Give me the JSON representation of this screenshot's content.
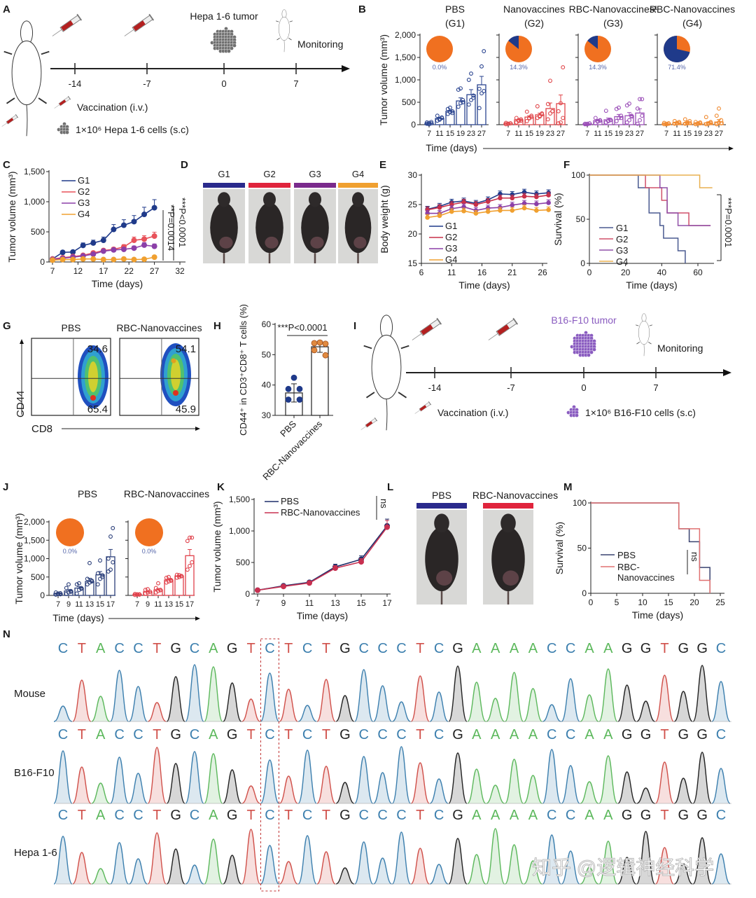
{
  "panel_labels": [
    "A",
    "B",
    "C",
    "D",
    "E",
    "F",
    "G",
    "H",
    "I",
    "J",
    "K",
    "L",
    "M",
    "N"
  ],
  "A": {
    "tumor_label": "Hepa 1-6 tumor",
    "timeline_ticks": [
      "-14",
      "-7",
      "0",
      "7"
    ],
    "monitoring": "Monitoring",
    "legend_vaccination": "Vaccination (i.v.)",
    "legend_cells": "1×10⁶ Hepa 1-6 cells (s.c)"
  },
  "D": {
    "labels": [
      "G1",
      "G2",
      "G3",
      "G4"
    ],
    "colors": [
      "#2a2a8c",
      "#e0243c",
      "#7a2a8c",
      "#f0a030"
    ]
  },
  "G": {
    "titles": [
      "PBS",
      "RBC-Nanovaccines"
    ],
    "upper_values": [
      "34.6",
      "54.1"
    ],
    "lower_values": [
      "65.4",
      "45.9"
    ],
    "y_label": "CD44",
    "x_label": "CD8"
  },
  "I": {
    "tumor_label": "B16-F10 tumor",
    "timeline_ticks": [
      "-14",
      "-7",
      "0",
      "7"
    ],
    "monitoring": "Monitoring",
    "legend_vaccination": "Vaccination (i.v.)",
    "legend_cells": "1×10⁶ B16-F10 cells (s.c)",
    "tumor_color": "#8a5cc0"
  },
  "L": {
    "labels": [
      "PBS",
      "RBC-Nanovaccines"
    ],
    "colors": [
      "#2a2a8c",
      "#e0243c"
    ]
  },
  "N": {
    "sequence": "CTACCTGCAGTCTCTGCCCTCGAAAACCAAGGTGGC",
    "rows": [
      "Mouse",
      "B16-F10",
      "Hepa 1-6"
    ],
    "highlight_index": 11,
    "base_colors": {
      "A": "#5cb85c",
      "C": "#3c7fae",
      "G": "#222222",
      "T": "#d0504a"
    },
    "watermark": "知乎 @逻辑神经科学"
  },
  "chart_data": [
    {
      "panel": "B",
      "type": "bar",
      "ylabel": "Tumor volume (mm³)",
      "xlabel": "Time (days)",
      "ylim": [
        0,
        2000
      ],
      "yticks": [
        "0",
        "500",
        "1,000",
        "1,500",
        "2,000"
      ],
      "categories": [
        "7",
        "11",
        "15",
        "19",
        "23",
        "27"
      ],
      "pie_colors": {
        "tumor": "#f07020",
        "tumor_free": "#1f3a8a"
      },
      "groups": [
        {
          "title": "PBS",
          "subtitle": "(G1)",
          "color": "#2b4590",
          "pie_label": "0.0%",
          "tumor_free_fraction": 0.0,
          "means": [
            30,
            140,
            300,
            530,
            670,
            890
          ],
          "points": [
            [
              20,
              40,
              60,
              50,
              10,
              30
            ],
            [
              90,
              130,
              160,
              200,
              110,
              150
            ],
            [
              240,
              280,
              300,
              350,
              380,
              260
            ],
            [
              400,
              480,
              550,
              780,
              810,
              500
            ],
            [
              450,
              550,
              650,
              1000,
              1140,
              600
            ],
            [
              370,
              700,
              750,
              800,
              1300,
              1640
            ]
          ]
        },
        {
          "title": "Nanovaccines",
          "subtitle": "(G2)",
          "color": "#e0464a",
          "pie_label": "14.3%",
          "tumor_free_fraction": 0.143,
          "means": [
            30,
            110,
            170,
            220,
            360,
            470
          ],
          "points": [
            [
              10,
              20,
              30,
              40,
              20,
              30
            ],
            [
              50,
              80,
              120,
              150,
              100,
              90
            ],
            [
              80,
              150,
              200,
              290,
              140,
              170
            ],
            [
              150,
              200,
              250,
              410,
              180,
              230
            ],
            [
              120,
              250,
              300,
              460,
              980,
              300
            ],
            [
              30,
              50,
              150,
              300,
              480,
              1280
            ]
          ]
        },
        {
          "title": "RBC-Nanovaccines¹",
          "subtitle": "(G3)",
          "color": "#9b4fb8",
          "pie_label": "14.3%",
          "tumor_free_fraction": 0.143,
          "means": [
            20,
            90,
            110,
            180,
            200,
            260
          ],
          "points": [
            [
              10,
              20,
              30,
              20,
              10,
              25
            ],
            [
              30,
              70,
              100,
              150,
              80,
              90
            ],
            [
              50,
              80,
              100,
              310,
              90,
              110
            ],
            [
              80,
              150,
              200,
              350,
              380,
              150
            ],
            [
              50,
              100,
              200,
              430,
              470,
              180
            ],
            [
              20,
              100,
              200,
              360,
              570,
              570
            ]
          ]
        },
        {
          "title": "RBC-Nanovaccines",
          "subtitle": "(G4)",
          "color": "#f08a30",
          "pie_label": "71.4%",
          "tumor_free_fraction": 0.714,
          "means": [
            20,
            40,
            40,
            30,
            40,
            60
          ],
          "points": [
            [
              10,
              20,
              30,
              40,
              10,
              20
            ],
            [
              20,
              40,
              60,
              80,
              30,
              40
            ],
            [
              20,
              50,
              80,
              120,
              30,
              40
            ],
            [
              10,
              30,
              50,
              60,
              20,
              30
            ],
            [
              10,
              30,
              60,
              170,
              20,
              40
            ],
            [
              10,
              50,
              100,
              200,
              360,
              30
            ]
          ]
        }
      ]
    },
    {
      "panel": "C",
      "type": "line",
      "ylabel": "Tumor volume (mm³)",
      "xlabel": "Time (days)",
      "ylim": [
        0,
        1500
      ],
      "yticks": [
        "0",
        "500",
        "1,000",
        "1,500"
      ],
      "xlim": [
        7,
        32
      ],
      "xticks": [
        "7",
        "12",
        "17",
        "22",
        "27",
        "32"
      ],
      "x": [
        7,
        9,
        11,
        13,
        15,
        17,
        19,
        21,
        23,
        25,
        27
      ],
      "series": [
        {
          "name": "G1",
          "color": "#1f3a8a",
          "values": [
            50,
            160,
            165,
            275,
            315,
            360,
            540,
            610,
            670,
            790,
            900
          ]
        },
        {
          "name": "G2",
          "color": "#e8525a",
          "values": [
            50,
            70,
            90,
            110,
            150,
            190,
            210,
            250,
            360,
            380,
            430
          ]
        },
        {
          "name": "G3",
          "color": "#8b3fa8",
          "values": [
            40,
            60,
            80,
            100,
            130,
            180,
            200,
            210,
            230,
            280,
            260
          ]
        },
        {
          "name": "G4",
          "color": "#f0a030",
          "values": [
            30,
            40,
            40,
            50,
            50,
            40,
            40,
            50,
            40,
            45,
            80
          ]
        }
      ],
      "annotations": [
        "**P=0.0014",
        "***P<0.0001"
      ]
    },
    {
      "panel": "E",
      "type": "line",
      "ylabel": "Body weight (g)",
      "xlabel": "Time (days)",
      "ylim": [
        15,
        30
      ],
      "yticks": [
        "15",
        "20",
        "25",
        "30"
      ],
      "xlim": [
        6,
        26
      ],
      "xticks": [
        "6",
        "11",
        "16",
        "21",
        "26"
      ],
      "x": [
        7,
        9,
        11,
        13,
        15,
        17,
        19,
        21,
        23,
        25,
        27
      ],
      "series": [
        {
          "name": "G1",
          "color": "#1f3a8a",
          "values": [
            24.2,
            24.7,
            25.4,
            25.6,
            25.2,
            25.8,
            26.8,
            26.7,
            27.1,
            26.8,
            27.0
          ]
        },
        {
          "name": "G2",
          "color": "#c8304a",
          "values": [
            24.1,
            24.5,
            25.0,
            25.4,
            25.0,
            25.5,
            26.1,
            26.1,
            26.4,
            26.3,
            26.6
          ]
        },
        {
          "name": "G3",
          "color": "#8b3fa8",
          "values": [
            23.5,
            23.5,
            24.3,
            24.6,
            24.0,
            24.4,
            24.5,
            24.9,
            25.2,
            25.1,
            25.3
          ]
        },
        {
          "name": "G4",
          "color": "#f0a030",
          "values": [
            22.8,
            23.1,
            23.8,
            23.9,
            23.5,
            23.8,
            24.0,
            24.0,
            24.4,
            24.0,
            24.1
          ]
        }
      ]
    },
    {
      "panel": "F",
      "type": "line",
      "ylabel": "Survival (%)",
      "xlabel": "Time (days)",
      "ylim": [
        0,
        100
      ],
      "yticks": [
        "0",
        "50",
        "100"
      ],
      "xlim": [
        0,
        70
      ],
      "xticks": [
        "0",
        "20",
        "40",
        "60"
      ],
      "series": [
        {
          "name": "G1",
          "color": "#4a5a90",
          "steps": [
            [
              0,
              100
            ],
            [
              27,
              85.7
            ],
            [
              33,
              57.1
            ],
            [
              39,
              42.9
            ],
            [
              41,
              28.6
            ],
            [
              49,
              14.3
            ],
            [
              53,
              0
            ]
          ],
          "end": 53
        },
        {
          "name": "G2",
          "color": "#d0506a",
          "steps": [
            [
              0,
              100
            ],
            [
              31,
              85.7
            ],
            [
              40,
              71.4
            ],
            [
              43,
              57.1
            ],
            [
              55,
              42.9
            ]
          ],
          "end": 67
        },
        {
          "name": "G3",
          "color": "#9050a8",
          "steps": [
            [
              0,
              100
            ],
            [
              39,
              85.7
            ],
            [
              43,
              57.1
            ],
            [
              49,
              42.9
            ]
          ],
          "end": 67
        },
        {
          "name": "G4",
          "color": "#e8b050",
          "steps": [
            [
              0,
              100
            ],
            [
              61,
              85.7
            ]
          ],
          "end": 68
        }
      ],
      "annotations": [
        "***P=0.0001"
      ]
    },
    {
      "panel": "H",
      "type": "bar",
      "ylabel": "CD44⁺ in CD3⁺CD8⁺ T cells (%)",
      "ylim": [
        30,
        60
      ],
      "yticks": [
        "30",
        "40",
        "50",
        "60"
      ],
      "categories": [
        "PBS",
        "RBC-Nanovaccines"
      ],
      "colors": [
        "#1f3a8a",
        "#e08a40"
      ],
      "values": [
        37.4,
        52.6
      ],
      "points": [
        [
          42.4,
          38.7,
          38.7,
          35.2,
          35.2
        ],
        [
          54.0,
          53.8,
          53.6,
          51.5,
          49.8
        ]
      ],
      "annotations": [
        "***P<0.0001"
      ]
    },
    {
      "panel": "J",
      "type": "bar",
      "ylabel": "Tumor volume (mm³)",
      "xlabel": "Time (days)",
      "ylim": [
        0,
        2000
      ],
      "yticks": [
        "0",
        "500",
        "1,000",
        "1,500",
        "2,000"
      ],
      "categories": [
        "7",
        "9",
        "11",
        "13",
        "15",
        "17"
      ],
      "pie_colors": {
        "tumor": "#f07020",
        "tumor_free": "#1f3a8a"
      },
      "groups": [
        {
          "title": "PBS",
          "color": "#2b3f7a",
          "pie_label": "0.0%",
          "tumor_free_fraction": 0.0,
          "means": [
            50,
            120,
            200,
            380,
            560,
            1050
          ],
          "points": [
            [
              20,
              40,
              60,
              80,
              50,
              30
            ],
            [
              40,
              80,
              120,
              200,
              300,
              100
            ],
            [
              50,
              150,
              200,
              300,
              330,
              180
            ],
            [
              300,
              350,
              400,
              450,
              880,
              380
            ],
            [
              300,
              450,
              550,
              600,
              950,
              500
            ],
            [
              650,
              700,
              900,
              1000,
              1600,
              1830
            ]
          ]
        },
        {
          "title": "RBC-Nanovaccines",
          "color": "#e0404a",
          "pie_label": "0.0%",
          "tumor_free_fraction": 0.0,
          "means": [
            30,
            100,
            150,
            420,
            530,
            1080
          ],
          "points": [
            [
              10,
              20,
              30,
              40,
              30,
              20
            ],
            [
              50,
              80,
              100,
              150,
              170,
              100
            ],
            [
              80,
              120,
              150,
              200,
              330,
              140
            ],
            [
              350,
              380,
              420,
              480,
              500,
              400
            ],
            [
              480,
              500,
              530,
              560,
              550,
              520
            ],
            [
              700,
              800,
              900,
              1480,
              1570,
              1570
            ]
          ]
        }
      ]
    },
    {
      "panel": "K",
      "type": "line",
      "ylabel": "Tumor volume (mm³)",
      "xlabel": "Time (days)",
      "ylim": [
        0,
        1500
      ],
      "yticks": [
        "0",
        "500",
        "1,000",
        "1,500"
      ],
      "xlim": [
        7,
        17
      ],
      "xticks": [
        "7",
        "9",
        "11",
        "13",
        "15",
        "17"
      ],
      "x": [
        7,
        9,
        11,
        13,
        15,
        17
      ],
      "series": [
        {
          "name": "PBS",
          "color": "#1f2f6a",
          "values": [
            60,
            130,
            185,
            430,
            550,
            1080
          ]
        },
        {
          "name": "RBC-Nanovaccines",
          "color": "#c83050",
          "values": [
            60,
            120,
            175,
            410,
            510,
            1060
          ]
        }
      ],
      "annotations": [
        "ns"
      ]
    },
    {
      "panel": "M",
      "type": "line",
      "ylabel": "Survival (%)",
      "xlabel": "Time (days)",
      "ylim": [
        0,
        100
      ],
      "yticks": [
        "0",
        "50",
        "100"
      ],
      "xlim": [
        0,
        25
      ],
      "xticks": [
        "0",
        "5",
        "10",
        "15",
        "20",
        "25"
      ],
      "series": [
        {
          "name": "PBS",
          "legend_lines": [
            "PBS"
          ],
          "color": "#3a4470",
          "steps": [
            [
              0,
              100
            ],
            [
              17,
              71.4
            ],
            [
              19,
              57.1
            ],
            [
              21,
              28.6
            ],
            [
              23,
              0
            ]
          ],
          "end": 23
        },
        {
          "name": "RBC-Nanovaccines",
          "legend_lines": [
            "RBC-",
            "Nanovaccines"
          ],
          "color": "#e07070",
          "steps": [
            [
              0,
              100
            ],
            [
              17,
              71.4
            ],
            [
              21,
              14.3
            ],
            [
              23,
              0
            ]
          ],
          "end": 23
        }
      ],
      "annotations": [
        "ns"
      ]
    }
  ]
}
